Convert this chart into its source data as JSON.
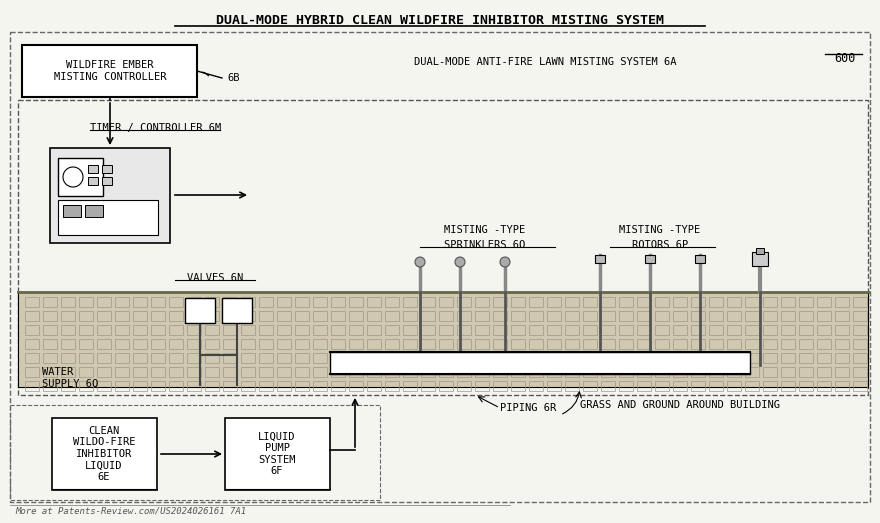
{
  "title": "DUAL-MODE HYBRID CLEAN WILDFIRE INHIBITOR MISTING SYSTEM",
  "bg_color": "#f5f5f0",
  "outer_box_color": "#333333",
  "inner_box_color": "#444444",
  "fig_width": 8.8,
  "fig_height": 5.23,
  "ref_number": "600",
  "labels": {
    "controller_box": "WILDFIRE EMBER\nMISTING CONTROLLER",
    "controller_ref": "6B",
    "system_label": "DUAL-MODE ANTI-FIRE LAWN MISTING SYSTEM 6A",
    "timer_label": "TIMER / CONTROLLER 6M",
    "valves_label": "VALVES 6N",
    "sprinklers_label": "MISTING -TYPE\nSPRINKLERS 6O",
    "rotors_label": "MISTING -TYPE\nROTORS 6P",
    "water_label": "WATER\nSUPPLY 6Q",
    "piping_label": "PIPING 6R",
    "grass_label": "GRASS AND GROUND AROUND BUILDING",
    "inhibitor_box": "CLEAN\nWILDO-FIRE\nINHIBITOR\nLIQUID\n6E",
    "pump_box": "LIQUID\nPUMP\nSYSTEM\n6F",
    "watermark": "More at Patents-Review.com/US2024026161 7A1"
  }
}
